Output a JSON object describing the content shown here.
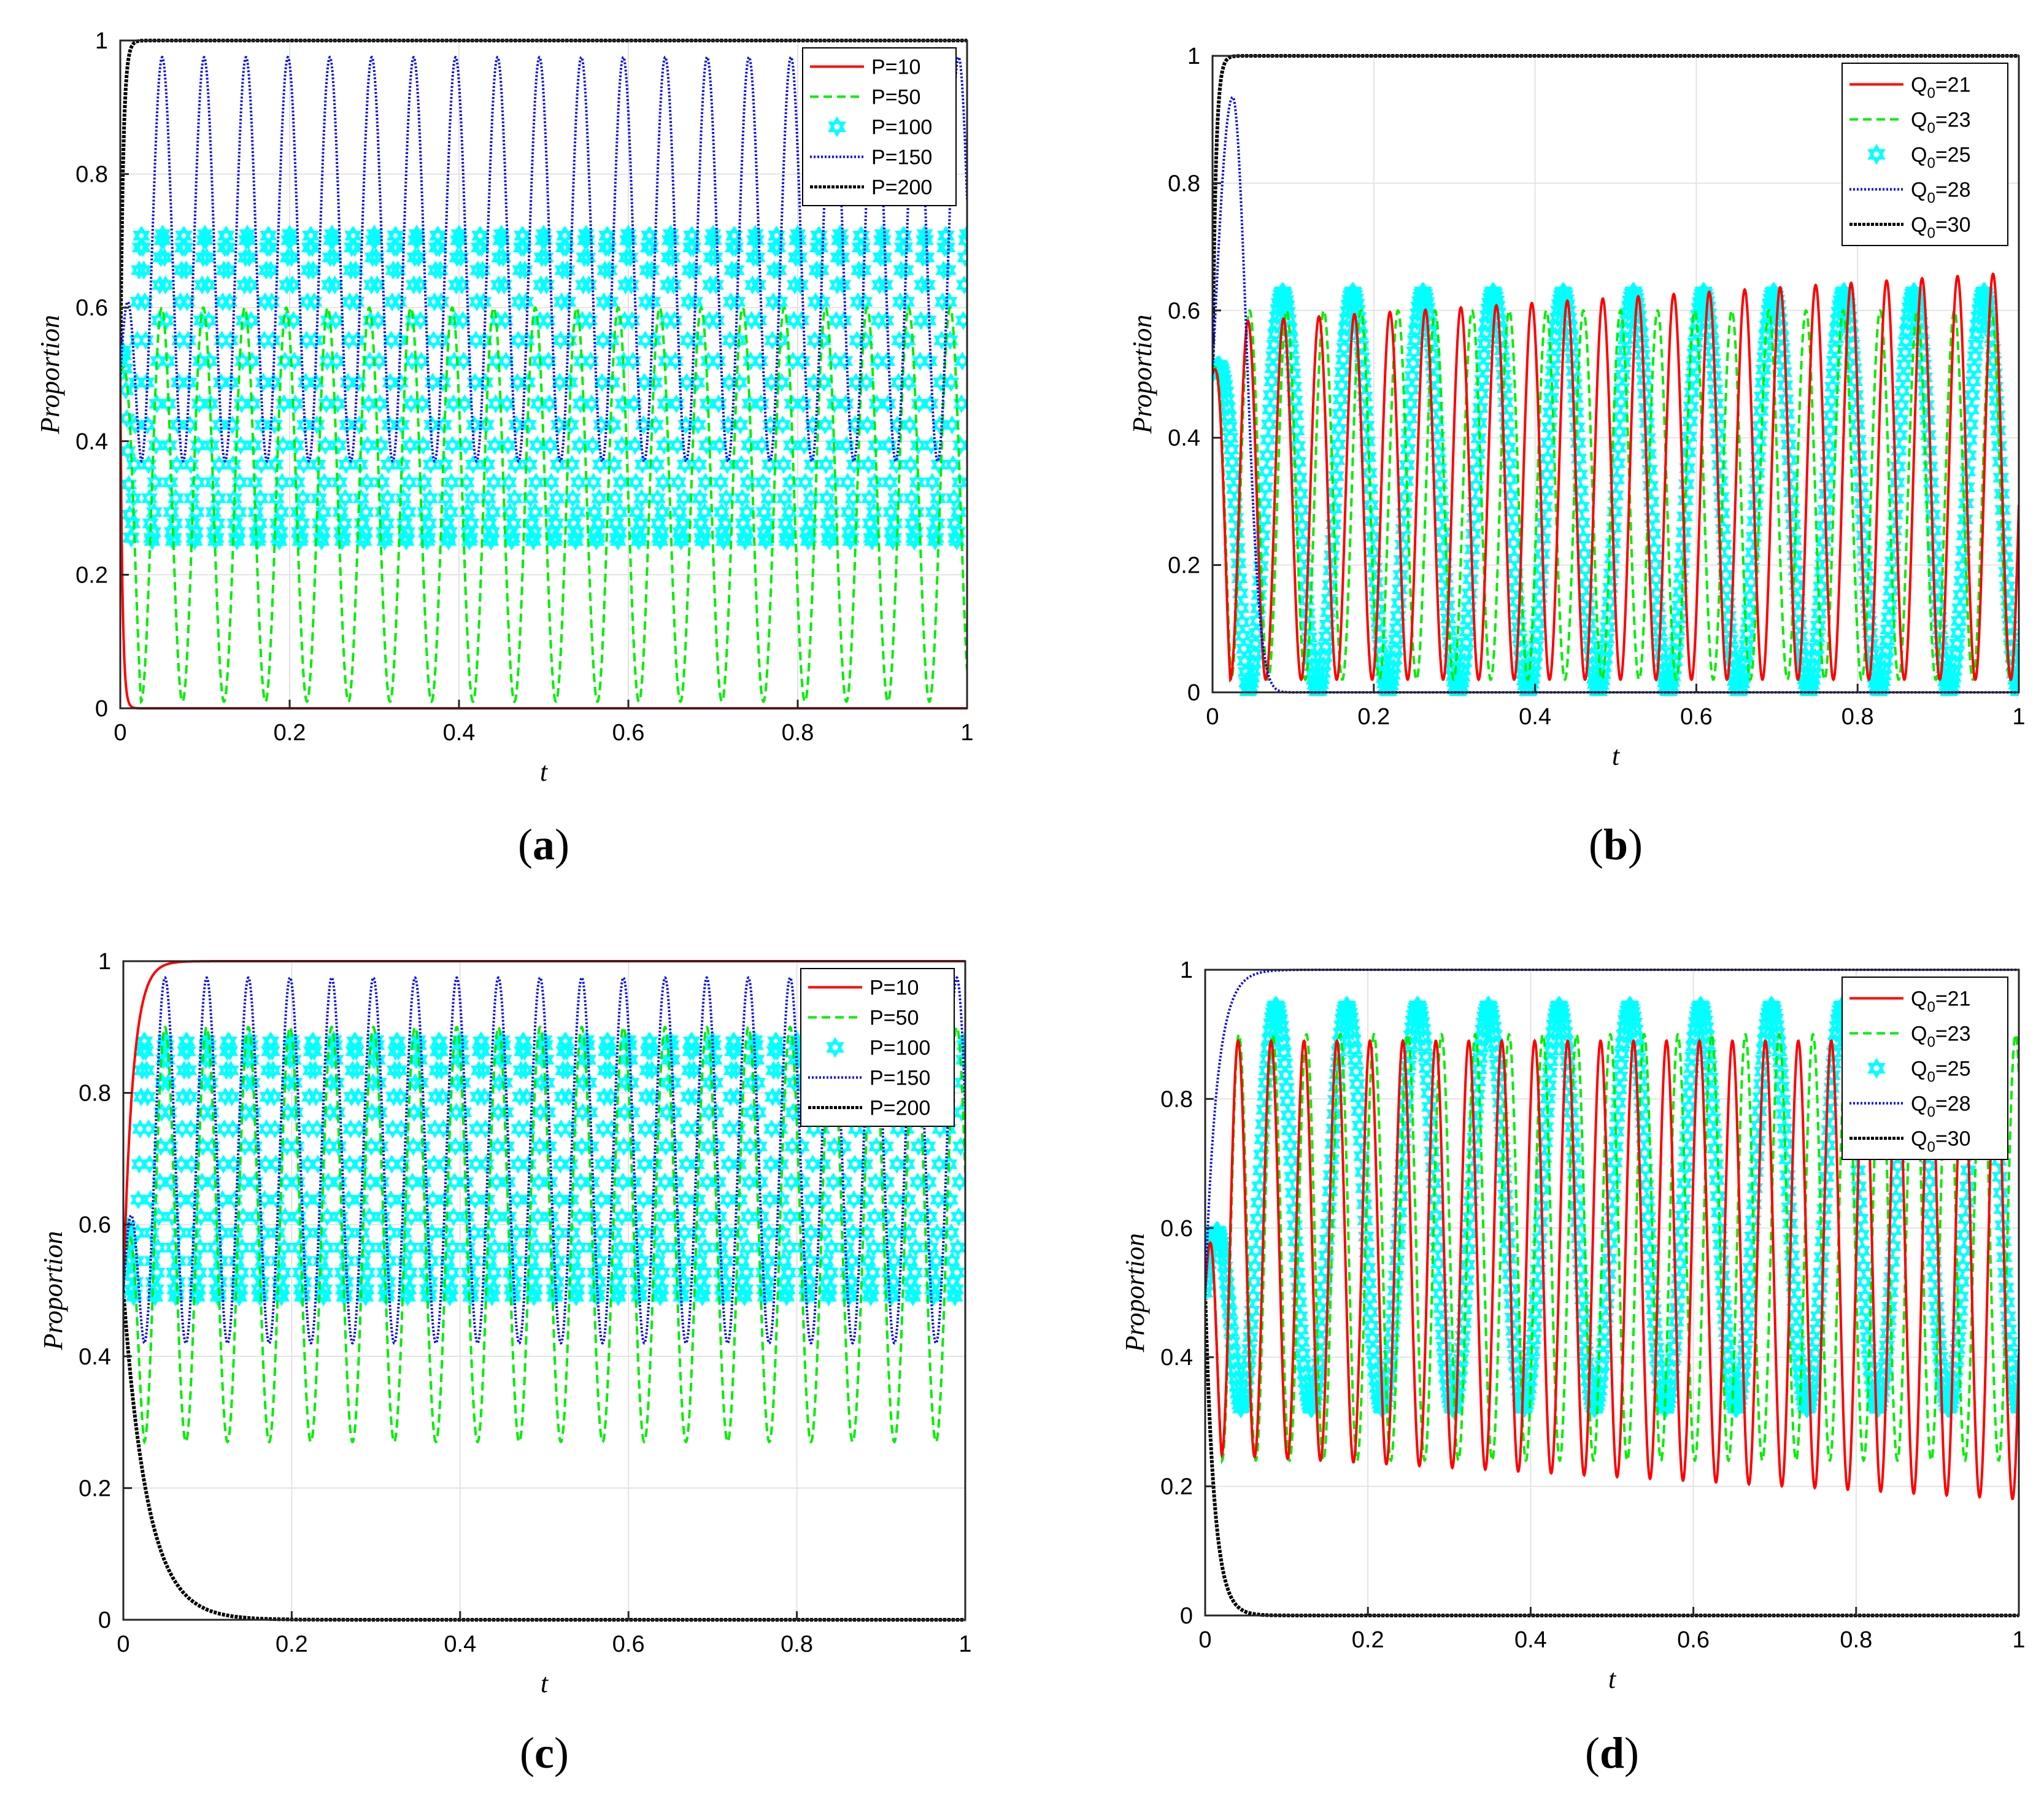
{
  "colors": {
    "series": [
      "#ff0000",
      "#00ee00",
      "#00ffff",
      "#0000ff",
      "#000000"
    ],
    "grid": "#e3e3e3",
    "axis": "#262626"
  },
  "chart_data": [
    {
      "id": "a",
      "type": "line",
      "caption": "a",
      "xlabel": "t",
      "ylabel": "Proportion",
      "xlim": [
        0,
        1
      ],
      "ylim": [
        0,
        1
      ],
      "xticks": [
        "0",
        "0.2",
        "0.4",
        "0.6",
        "0.8",
        "1"
      ],
      "yticks": [
        "0",
        "0.2",
        "0.4",
        "0.6",
        "0.8",
        "1"
      ],
      "legend_position": "top-right",
      "series": [
        {
          "name": "P=10",
          "label": "P=10",
          "style": "solid",
          "kind": "converge",
          "start": 0.5,
          "end": 0.0,
          "rate": 400
        },
        {
          "name": "P=50",
          "label": "P=50",
          "style": "dashed",
          "kind": "osc",
          "min": 0.01,
          "max": 0.6,
          "period": 0.049,
          "start": 0.5
        },
        {
          "name": "P=100",
          "label": "P=100",
          "style": "hexagram",
          "kind": "osc",
          "min": 0.25,
          "max": 0.71,
          "period": 0.025,
          "start": 0.5
        },
        {
          "name": "P=150",
          "label": "P=150",
          "style": "dotted",
          "kind": "osc",
          "min": 0.37,
          "max": 0.975,
          "period": 0.0495,
          "start": 0.5
        },
        {
          "name": "P=200",
          "label": "P=200",
          "style": "dotmarker",
          "kind": "converge",
          "start": 0.5,
          "end": 1.0,
          "rate": 300
        }
      ]
    },
    {
      "id": "b",
      "type": "line",
      "caption": "b",
      "xlabel": "t",
      "ylabel": "Proportion",
      "xlim": [
        0,
        1
      ],
      "ylim": [
        0,
        1
      ],
      "xticks": [
        "0",
        "0.2",
        "0.4",
        "0.6",
        "0.8",
        "1"
      ],
      "yticks": [
        "0",
        "0.2",
        "0.4",
        "0.6",
        "0.8",
        "1"
      ],
      "legend_position": "top-right",
      "series": [
        {
          "name": "Q0=21",
          "label_main": "Q",
          "label_sub": "0",
          "label_rest": "=21",
          "style": "solid",
          "kind": "osc",
          "min": 0.02,
          "max": 0.58,
          "max_end": 0.66,
          "period": 0.044,
          "start": 0.5
        },
        {
          "name": "Q0=23",
          "label_main": "Q",
          "label_sub": "0",
          "label_rest": "=23",
          "style": "dashed",
          "kind": "osc",
          "min": 0.02,
          "max": 0.6,
          "period": 0.046,
          "start": 0.5
        },
        {
          "name": "Q0=25",
          "label_main": "Q",
          "label_sub": "0",
          "label_rest": "=25",
          "style": "hexagram",
          "kind": "osc",
          "min": 0.0,
          "max": 0.63,
          "period": 0.087,
          "start": 0.5
        },
        {
          "name": "Q0=28",
          "label_main": "Q",
          "label_sub": "0",
          "label_rest": "=28",
          "style": "dotted",
          "kind": "bump",
          "start": 0.5,
          "peak": 0.935,
          "peak_t": 0.025,
          "end": 0.0,
          "decay": 45
        },
        {
          "name": "Q0=30",
          "label_main": "Q",
          "label_sub": "0",
          "label_rest": "=30",
          "style": "dotmarker",
          "kind": "converge",
          "start": 0.5,
          "end": 1.0,
          "rate": 250
        }
      ]
    },
    {
      "id": "c",
      "type": "line",
      "caption": "c",
      "xlabel": "t",
      "ylabel": "Proportion",
      "xlim": [
        0,
        1
      ],
      "ylim": [
        0,
        1
      ],
      "xticks": [
        "0",
        "0.2",
        "0.4",
        "0.6",
        "0.8",
        "1"
      ],
      "yticks": [
        "0",
        "0.2",
        "0.4",
        "0.6",
        "0.8",
        "1"
      ],
      "legend_position": "top-right",
      "series": [
        {
          "name": "P=10",
          "label": "P=10",
          "style": "solid",
          "kind": "converge",
          "start": 0.5,
          "end": 1.0,
          "rate": 90
        },
        {
          "name": "P=50",
          "label": "P=50",
          "style": "dashed",
          "kind": "osc",
          "min": 0.27,
          "max": 0.9,
          "period": 0.0495,
          "start": 0.5
        },
        {
          "name": "P=100",
          "label": "P=100",
          "style": "hexagram",
          "kind": "osc",
          "min": 0.49,
          "max": 0.88,
          "period": 0.025,
          "start": 0.5
        },
        {
          "name": "P=150",
          "label": "P=150",
          "style": "dotted",
          "kind": "osc",
          "min": 0.42,
          "max": 0.975,
          "period": 0.0495,
          "start": 0.5
        },
        {
          "name": "P=200",
          "label": "P=200",
          "style": "dotmarker",
          "kind": "converge",
          "start": 0.5,
          "end": 0.0,
          "rate": 35
        }
      ]
    },
    {
      "id": "d",
      "type": "line",
      "caption": "d",
      "xlabel": "t",
      "ylabel": "Proportion",
      "xlim": [
        0,
        1
      ],
      "ylim": [
        0,
        1
      ],
      "xticks": [
        "0",
        "0.2",
        "0.4",
        "0.6",
        "0.8",
        "1"
      ],
      "yticks": [
        "0",
        "0.2",
        "0.4",
        "0.6",
        "0.8",
        "1"
      ],
      "legend_position": "top-right",
      "series": [
        {
          "name": "Q0=21",
          "label_main": "Q",
          "label_sub": "0",
          "label_rest": "=21",
          "style": "solid",
          "kind": "osc",
          "min": 0.25,
          "min_end": 0.18,
          "max": 0.89,
          "period": 0.0405,
          "start": 0.5
        },
        {
          "name": "Q0=23",
          "label_main": "Q",
          "label_sub": "0",
          "label_rest": "=23",
          "style": "dashed",
          "kind": "osc",
          "min": 0.24,
          "max": 0.9,
          "period": 0.0415,
          "start": 0.5
        },
        {
          "name": "Q0=25",
          "label_main": "Q",
          "label_sub": "0",
          "label_rest": "=25",
          "style": "hexagram",
          "kind": "osc",
          "min": 0.32,
          "max": 0.945,
          "period": 0.087,
          "start": 0.5
        },
        {
          "name": "Q0=28",
          "label_main": "Q",
          "label_sub": "0",
          "label_rest": "=28",
          "style": "dotted",
          "kind": "converge",
          "start": 0.5,
          "end": 1.0,
          "rate": 70
        },
        {
          "name": "Q0=30",
          "label_main": "Q",
          "label_sub": "0",
          "label_rest": "=30",
          "style": "dotmarker",
          "kind": "converge",
          "start": 0.5,
          "end": 0.0,
          "rate": 90
        }
      ]
    }
  ]
}
